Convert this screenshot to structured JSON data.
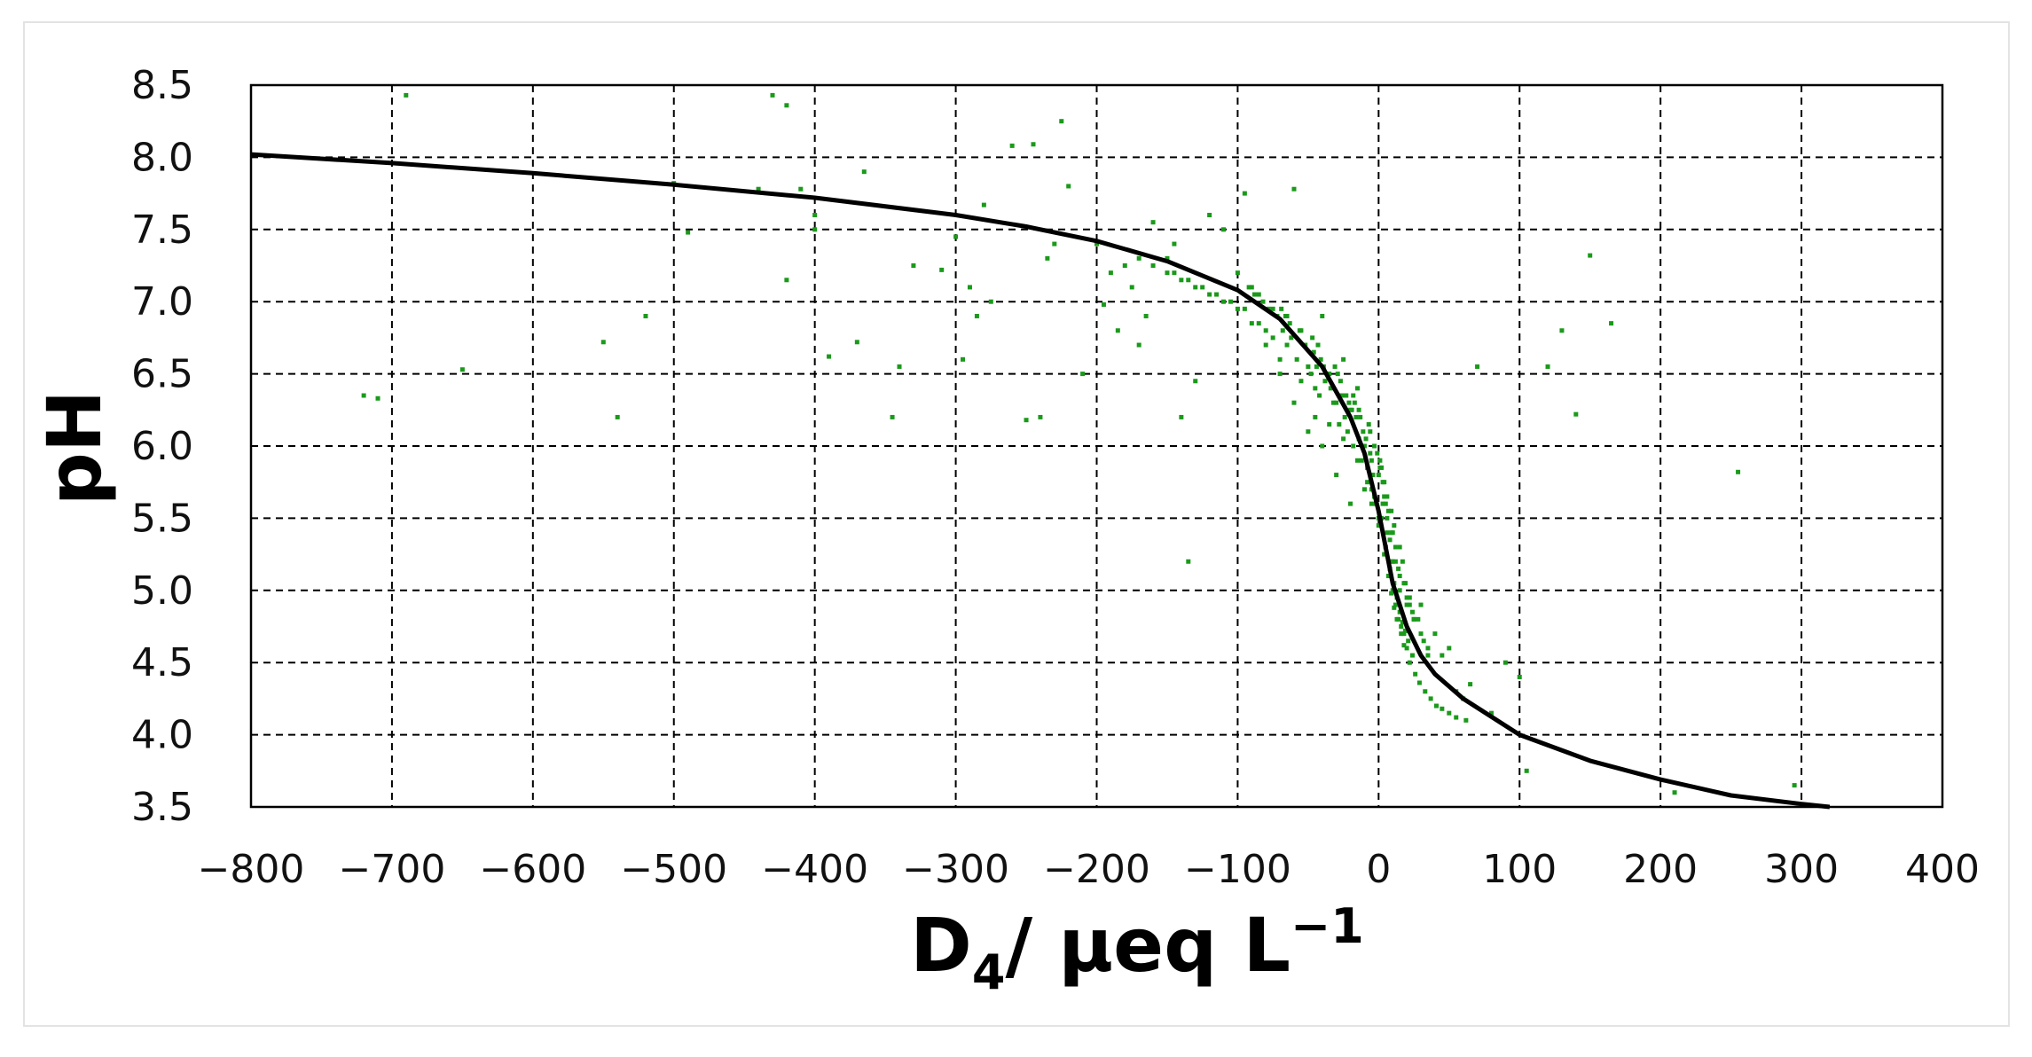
{
  "chart_data": {
    "type": "scatter",
    "xlabel": "D",
    "xlabel_sub": "4",
    "xlabel_unit": "/ μeq L",
    "xlabel_sup": "−1",
    "ylabel": "pH",
    "xlim": [
      -800,
      400
    ],
    "ylim": [
      3.5,
      8.5
    ],
    "x_ticks": [
      -800,
      -700,
      -600,
      -500,
      -400,
      -300,
      -200,
      -100,
      0,
      100,
      200,
      300,
      400
    ],
    "x_tick_labels": [
      "−800",
      "−700",
      "−600",
      "−500",
      "−400",
      "−300",
      "−200",
      "−100",
      "0",
      "100",
      "200",
      "300",
      "400"
    ],
    "y_ticks": [
      3.5,
      4.0,
      4.5,
      5.0,
      5.5,
      6.0,
      6.5,
      7.0,
      7.5,
      8.0,
      8.5
    ],
    "y_tick_labels": [
      "3.5",
      "4.0",
      "4.5",
      "5.0",
      "5.5",
      "6.0",
      "6.5",
      "7.0",
      "7.5",
      "8.0",
      "8.5"
    ],
    "grid": true,
    "series": [
      {
        "kind": "curve",
        "color": "#000000",
        "x": [
          -800,
          -700,
          -600,
          -500,
          -400,
          -300,
          -250,
          -200,
          -150,
          -100,
          -70,
          -40,
          -20,
          -10,
          0,
          10,
          20,
          30,
          40,
          60,
          100,
          150,
          200,
          250,
          300,
          320
        ],
        "y": [
          8.02,
          7.96,
          7.89,
          7.81,
          7.72,
          7.6,
          7.52,
          7.42,
          7.28,
          7.08,
          6.88,
          6.55,
          6.2,
          5.95,
          5.55,
          5.05,
          4.75,
          4.55,
          4.42,
          4.25,
          4.0,
          3.82,
          3.69,
          3.58,
          3.52,
          3.5
        ]
      },
      {
        "kind": "points",
        "color": "#1a9a1a",
        "x": [
          -690,
          -720,
          -710,
          -650,
          -550,
          -540,
          -520,
          -500,
          -490,
          -440,
          -430,
          -420,
          -420,
          -410,
          -400,
          -400,
          -390,
          -370,
          -365,
          -345,
          -340,
          -330,
          -310,
          -300,
          -295,
          -290,
          -285,
          -280,
          -275,
          -260,
          -250,
          -245,
          -240,
          -235,
          -230,
          -225,
          -220,
          -210,
          -200,
          -195,
          -190,
          -185,
          -180,
          -175,
          -170,
          -165,
          -160,
          -150,
          -145,
          -140,
          -135,
          -130,
          -120,
          -110,
          -100,
          -95,
          -90,
          -85,
          -80,
          -75,
          -70,
          -65,
          -60,
          -55,
          -50,
          -45,
          -40,
          -35,
          -30,
          -25,
          -20,
          -15,
          -10,
          -5,
          0,
          5,
          10,
          15,
          20,
          25,
          30,
          35,
          40,
          45,
          50,
          55,
          60,
          65,
          70,
          80,
          90,
          100,
          105,
          120,
          130,
          140,
          150,
          165,
          210,
          255,
          295,
          -60,
          -50,
          -40,
          -30,
          -20,
          -10,
          0,
          10,
          20,
          30,
          -70,
          -45,
          -35,
          -25,
          -15,
          -5,
          5,
          15,
          25,
          35,
          -80,
          -55,
          -42,
          -28,
          -18,
          -8,
          2,
          12,
          22,
          32,
          -90,
          -65,
          -48,
          -32,
          -22,
          -12,
          -2,
          8,
          18,
          28,
          -100,
          -75,
          -58,
          -38,
          -24,
          -14,
          -4,
          6,
          14,
          24,
          -110,
          -85,
          -62,
          -44,
          -26,
          -16,
          -6,
          4,
          12,
          22,
          -120,
          -95,
          -68,
          -46,
          -34,
          -19,
          -9,
          3,
          9,
          19,
          -130,
          -105,
          -72,
          -52,
          -36,
          -21,
          -11,
          1,
          7,
          17,
          -140,
          -115,
          -78,
          -56,
          -39,
          -23,
          -13,
          -1,
          5,
          15,
          -150,
          -125,
          -82,
          -63,
          -41,
          -27,
          -14,
          -3,
          4,
          11,
          -160,
          -135,
          -88,
          -66,
          -43,
          -29,
          -17,
          -6,
          2,
          9,
          -170,
          -145,
          -92,
          -69,
          -47,
          -31,
          -18,
          -7,
          1,
          6,
          -5,
          0,
          5,
          8,
          10,
          12,
          14,
          16,
          18,
          20,
          3,
          6,
          9,
          11,
          13,
          15,
          17,
          19,
          21,
          24,
          -8,
          -3,
          1,
          4,
          7,
          9,
          11,
          13,
          16,
          18,
          22,
          26,
          29,
          33,
          37,
          41,
          45,
          50,
          55,
          62
        ],
        "y": [
          8.43,
          6.35,
          6.33,
          6.53,
          6.72,
          6.2,
          6.9,
          7.82,
          7.48,
          7.78,
          8.43,
          8.36,
          7.15,
          7.78,
          7.6,
          7.5,
          6.62,
          6.72,
          7.9,
          6.2,
          6.55,
          7.25,
          7.22,
          7.45,
          6.6,
          7.1,
          6.9,
          7.67,
          7.0,
          8.08,
          6.18,
          8.09,
          6.2,
          7.3,
          7.4,
          8.25,
          7.8,
          6.5,
          7.4,
          6.98,
          7.2,
          6.8,
          7.25,
          7.1,
          6.7,
          6.9,
          7.55,
          7.3,
          7.4,
          6.2,
          5.2,
          6.45,
          7.6,
          7.5,
          7.2,
          7.75,
          7.1,
          7.05,
          6.8,
          6.95,
          6.5,
          6.9,
          7.78,
          6.8,
          6.55,
          6.4,
          6.9,
          6.5,
          6.3,
          6.6,
          6.25,
          6.4,
          6.0,
          5.9,
          5.8,
          5.6,
          5.4,
          5.1,
          4.9,
          4.8,
          4.9,
          4.6,
          4.7,
          4.55,
          4.6,
          4.3,
          4.25,
          4.35,
          6.55,
          4.15,
          4.5,
          4.4,
          3.75,
          6.55,
          6.8,
          6.22,
          7.32,
          6.85,
          3.6,
          5.82,
          3.65,
          6.3,
          6.1,
          6.0,
          5.8,
          5.6,
          5.7,
          5.45,
          5.2,
          4.95,
          4.7,
          6.6,
          6.2,
          6.15,
          6.05,
          5.9,
          5.6,
          5.3,
          5.0,
          4.8,
          4.55,
          6.7,
          6.45,
          6.35,
          6.15,
          6.0,
          5.75,
          5.5,
          5.2,
          4.9,
          4.65,
          6.85,
          6.7,
          6.5,
          6.3,
          6.1,
          5.9,
          5.6,
          5.35,
          5.05,
          4.8,
          6.95,
          6.75,
          6.6,
          6.45,
          6.2,
          6.05,
          5.8,
          5.5,
          5.15,
          4.85,
          7.0,
          6.85,
          6.75,
          6.55,
          6.35,
          6.2,
          5.95,
          5.65,
          5.3,
          4.95,
          7.05,
          6.95,
          6.8,
          6.65,
          6.4,
          6.25,
          6.05,
          5.75,
          5.4,
          5.05,
          7.1,
          7.0,
          6.9,
          6.7,
          6.5,
          6.3,
          6.1,
          5.85,
          5.55,
          5.2,
          7.15,
          7.05,
          6.95,
          6.8,
          6.55,
          6.35,
          6.2,
          5.95,
          5.65,
          5.3,
          7.2,
          7.1,
          7.0,
          6.85,
          6.6,
          6.45,
          6.25,
          6.0,
          5.75,
          5.45,
          7.25,
          7.15,
          7.05,
          6.9,
          6.7,
          6.5,
          6.3,
          6.1,
          5.85,
          5.55,
          7.3,
          7.2,
          7.1,
          6.95,
          6.75,
          6.55,
          6.35,
          6.15,
          5.9,
          5.65,
          5.7,
          5.5,
          5.3,
          5.15,
          5.0,
          4.9,
          4.8,
          4.75,
          4.7,
          4.6,
          5.6,
          5.4,
          5.2,
          5.05,
          4.95,
          4.85,
          4.78,
          4.72,
          4.65,
          4.55,
          5.85,
          5.65,
          5.45,
          5.25,
          5.1,
          4.98,
          4.88,
          4.8,
          4.7,
          4.62,
          4.5,
          4.42,
          4.36,
          4.3,
          4.25,
          4.2,
          4.18,
          4.15,
          4.12,
          4.1
        ]
      }
    ]
  }
}
